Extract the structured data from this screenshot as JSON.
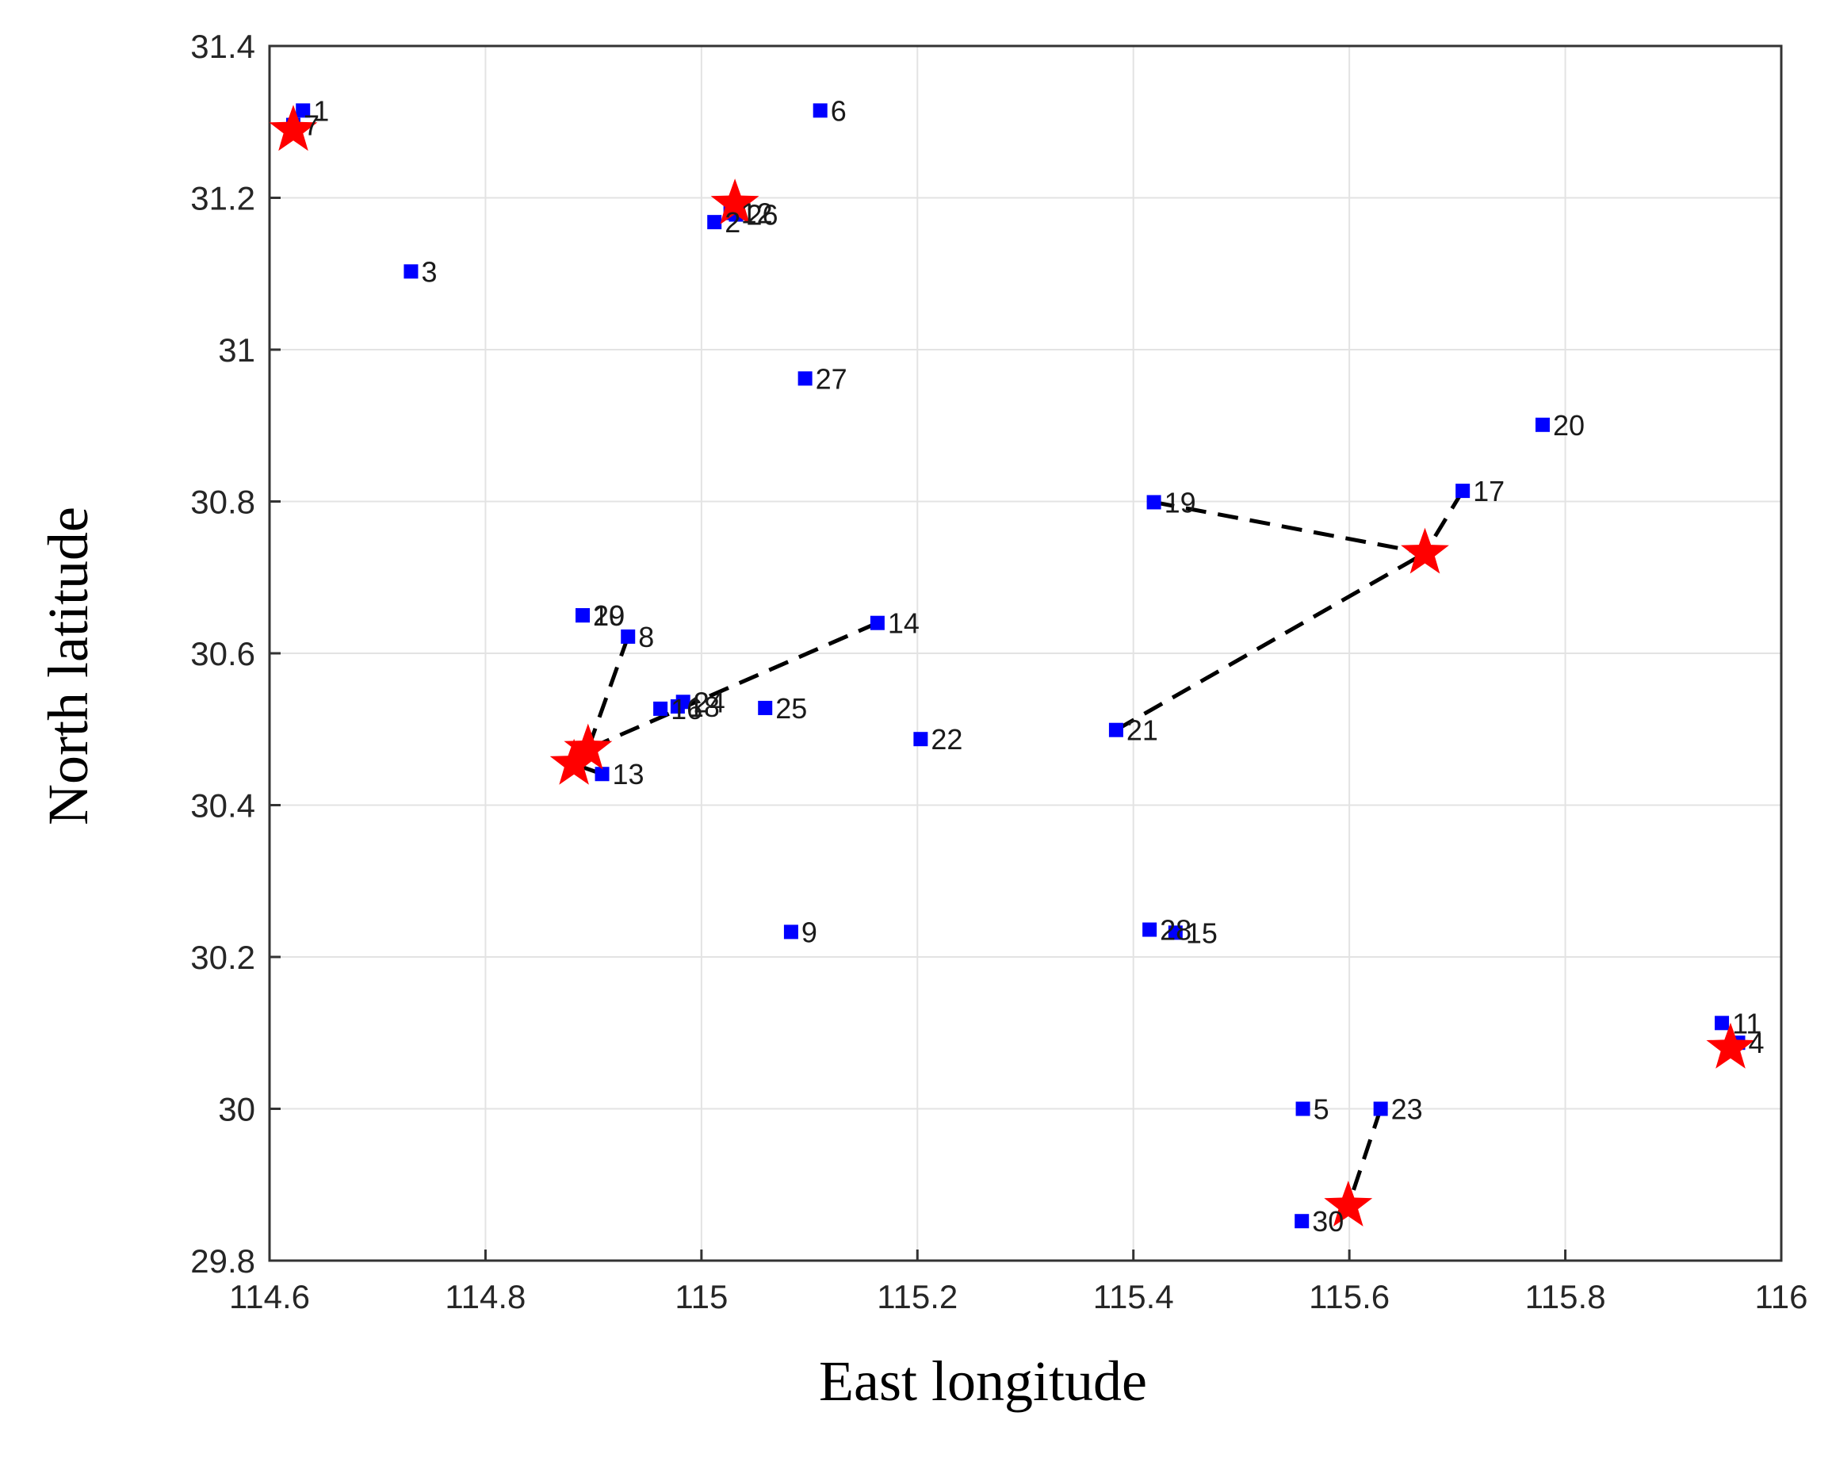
{
  "chart_data": {
    "type": "scatter",
    "title": "",
    "xlabel": "East longitude",
    "ylabel": "North latitude",
    "xlim": [
      114.6,
      116
    ],
    "ylim": [
      29.8,
      31.4
    ],
    "xticks": [
      "114.6",
      "114.8",
      "115",
      "115.2",
      "115.4",
      "115.6",
      "115.8",
      "116"
    ],
    "yticks": [
      "29.8",
      "30",
      "30.2",
      "30.4",
      "30.6",
      "30.8",
      "31",
      "31.2",
      "31.4"
    ],
    "grid": true,
    "marker_colors": {
      "points": "#0000ff",
      "centers": "#ff0000",
      "links": "#000000"
    },
    "points": [
      {
        "label": "1",
        "x": 114.631,
        "y": 31.315
      },
      {
        "label": "2",
        "x": 115.012,
        "y": 31.168
      },
      {
        "label": "3",
        "x": 114.731,
        "y": 31.103
      },
      {
        "label": "4",
        "x": 115.96,
        "y": 30.087
      },
      {
        "label": "5",
        "x": 115.557,
        "y": 30.0
      },
      {
        "label": "6",
        "x": 115.11,
        "y": 31.315
      },
      {
        "label": "7",
        "x": 114.622,
        "y": 31.296
      },
      {
        "label": "8",
        "x": 114.932,
        "y": 30.622
      },
      {
        "label": "9",
        "x": 115.083,
        "y": 30.233
      },
      {
        "label": "10",
        "x": 114.89,
        "y": 30.65
      },
      {
        "label": "11",
        "x": 115.945,
        "y": 30.113
      },
      {
        "label": "12",
        "x": 115.027,
        "y": 31.18
      },
      {
        "label": "13",
        "x": 114.908,
        "y": 30.441
      },
      {
        "label": "14",
        "x": 115.163,
        "y": 30.64
      },
      {
        "label": "15",
        "x": 115.439,
        "y": 30.232
      },
      {
        "label": "16",
        "x": 114.962,
        "y": 30.527
      },
      {
        "label": "17",
        "x": 115.705,
        "y": 30.814
      },
      {
        "label": "18",
        "x": 114.978,
        "y": 30.53
      },
      {
        "label": "19",
        "x": 115.419,
        "y": 30.799
      },
      {
        "label": "20",
        "x": 115.779,
        "y": 30.901
      },
      {
        "label": "21",
        "x": 115.384,
        "y": 30.499
      },
      {
        "label": "22",
        "x": 115.203,
        "y": 30.487
      },
      {
        "label": "23",
        "x": 115.629,
        "y": 30.0
      },
      {
        "label": "24",
        "x": 114.983,
        "y": 30.536
      },
      {
        "label": "25",
        "x": 115.059,
        "y": 30.528
      },
      {
        "label": "26",
        "x": 115.032,
        "y": 31.178
      },
      {
        "label": "27",
        "x": 115.096,
        "y": 30.962
      },
      {
        "label": "28",
        "x": 115.415,
        "y": 30.236
      },
      {
        "label": "29",
        "x": 114.89,
        "y": 30.65
      },
      {
        "label": "30",
        "x": 115.556,
        "y": 29.852
      }
    ],
    "centers": [
      {
        "label": "",
        "x": 114.622,
        "y": 31.289
      },
      {
        "label": "",
        "x": 115.031,
        "y": 31.192
      },
      {
        "label": "",
        "x": 115.67,
        "y": 30.732
      },
      {
        "label": "",
        "x": 114.895,
        "y": 30.474
      },
      {
        "label": "",
        "x": 114.882,
        "y": 30.454
      },
      {
        "label": "",
        "x": 115.599,
        "y": 29.872
      },
      {
        "label": "",
        "x": 115.953,
        "y": 30.08
      }
    ],
    "links": [
      {
        "from": [
          115.419,
          30.799
        ],
        "to": [
          115.67,
          30.732
        ]
      },
      {
        "from": [
          115.705,
          30.814
        ],
        "to": [
          115.67,
          30.732
        ]
      },
      {
        "from": [
          115.384,
          30.499
        ],
        "to": [
          115.67,
          30.732
        ]
      },
      {
        "from": [
          114.932,
          30.622
        ],
        "to": [
          114.895,
          30.474
        ]
      },
      {
        "from": [
          115.163,
          30.64
        ],
        "to": [
          114.895,
          30.474
        ]
      },
      {
        "from": [
          114.908,
          30.441
        ],
        "to": [
          114.882,
          30.454
        ]
      },
      {
        "from": [
          115.629,
          30.0
        ],
        "to": [
          115.599,
          29.872
        ]
      }
    ]
  }
}
